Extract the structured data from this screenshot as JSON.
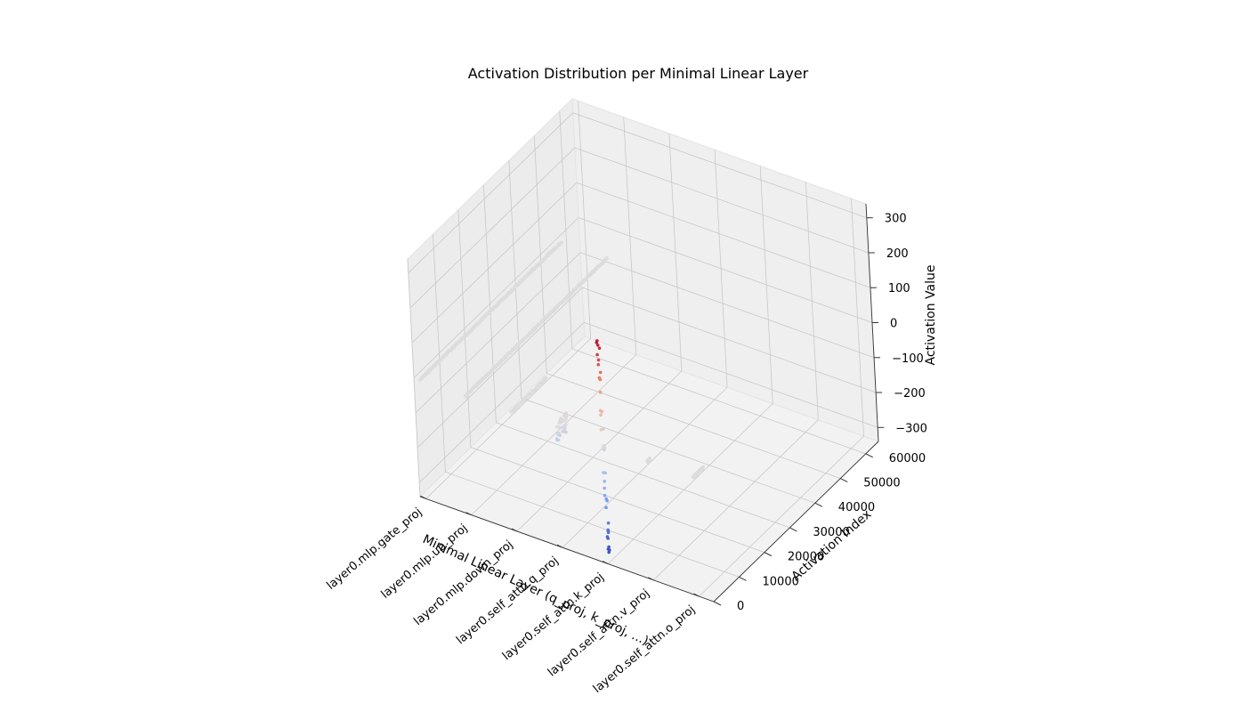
{
  "chart_data": {
    "type": "scatter",
    "projection": "3d",
    "title": "Activation Distribution per Minimal Linear Layer",
    "xlabel": "Minimal Linear Layer (q_proj, k_proj, ...)",
    "ylabel": "Activation Index",
    "zlabel": "Activation Value",
    "categories": [
      "layer0.mlp.gate_proj",
      "layer0.mlp.up_proj",
      "layer0.mlp.down_proj",
      "layer0.self_attn.q_proj",
      "layer0.self_attn.k_proj",
      "layer0.self_attn.v_proj",
      "layer0.self_attn.o_proj"
    ],
    "ylim": [
      0,
      65000
    ],
    "zlim": [
      -340,
      340
    ],
    "yticks": [
      0,
      10000,
      20000,
      30000,
      40000,
      50000,
      60000
    ],
    "zticks": [
      -300,
      -200,
      -100,
      0,
      100,
      200,
      300
    ],
    "ztick_labels": [
      "−300",
      "−200",
      "−100",
      "0",
      "100",
      "200",
      "300"
    ],
    "colormap": "coolwarm",
    "grid": true,
    "series": [
      {
        "layer": 0,
        "index_range": [
          0,
          56000
        ],
        "value_range": [
          -3,
          3
        ]
      },
      {
        "layer": 1,
        "index_range": [
          0,
          56000
        ],
        "value_range": [
          -3,
          3
        ]
      },
      {
        "layer": 2,
        "index_range": [
          0,
          14000
        ],
        "value_range": [
          -3,
          3
        ]
      },
      {
        "layer": 3,
        "index_range": [
          0,
          4096
        ],
        "value_range": [
          -40,
          20
        ]
      },
      {
        "layer": 4,
        "index_range": [
          0,
          1024
        ],
        "value_range": [
          -320,
          310
        ]
      },
      {
        "layer": 5,
        "index_range": [
          0,
          1024
        ],
        "value_range": [
          -3,
          3
        ]
      },
      {
        "layer": 6,
        "index_range": [
          0,
          4096
        ],
        "value_range": [
          -3,
          3
        ]
      }
    ]
  }
}
